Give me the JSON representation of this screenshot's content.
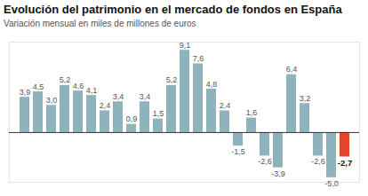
{
  "chart_data": {
    "type": "bar",
    "title": "Evolución del patrimonio en el mercado de fondos en España",
    "subtitle": "Variación mensual en miles de millones de euros",
    "categories": [
      null,
      null,
      null,
      null,
      null,
      null,
      null,
      null,
      null,
      null,
      null,
      null,
      null,
      null,
      null,
      null,
      null,
      null,
      null,
      null,
      null,
      null,
      null,
      null,
      null
    ],
    "values": [
      3.9,
      4.5,
      3.0,
      5.2,
      4.6,
      4.1,
      2.4,
      3.4,
      0.9,
      3.4,
      1.5,
      5.2,
      9.1,
      7.6,
      4.8,
      2.4,
      -1.5,
      1.6,
      -2.6,
      -3.9,
      6.4,
      3.2,
      -2.6,
      -5.0,
      -2.7
    ],
    "value_labels": [
      "3,9",
      "4,5",
      "3,0",
      "5,2",
      "4,6",
      "4,1",
      "2,4",
      "3,4",
      "0,9",
      "3,4",
      "1,5",
      "5,2",
      "9,1",
      "7,6",
      "4,8",
      "2,4",
      "-1,5",
      "1,6",
      "-2,6",
      "-3,9",
      "6,4",
      "3,2",
      "-2,6",
      "-5,0",
      "-2,7"
    ],
    "colors": [
      "#8fb3bd",
      "#8fb3bd",
      "#8fb3bd",
      "#8fb3bd",
      "#8fb3bd",
      "#8fb3bd",
      "#8fb3bd",
      "#8fb3bd",
      "#8fb3bd",
      "#8fb3bd",
      "#8fb3bd",
      "#8fb3bd",
      "#8fb3bd",
      "#8fb3bd",
      "#8fb3bd",
      "#8fb3bd",
      "#8fb3bd",
      "#8fb3bd",
      "#8fb3bd",
      "#8fb3bd",
      "#8fb3bd",
      "#8fb3bd",
      "#8fb3bd",
      "#8fb3bd",
      "#e2452c"
    ],
    "ylim": [
      -5.5,
      10
    ],
    "yticks": [
      0
    ],
    "data_labels": true,
    "tick_labels": false,
    "grid": false
  }
}
